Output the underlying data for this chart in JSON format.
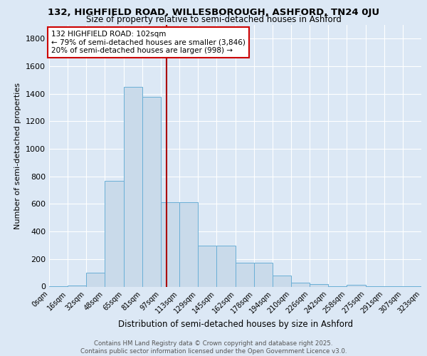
{
  "title1": "132, HIGHFIELD ROAD, WILLESBOROUGH, ASHFORD, TN24 0JU",
  "title2": "Size of property relative to semi-detached houses in Ashford",
  "xlabel": "Distribution of semi-detached houses by size in Ashford",
  "ylabel": "Number of semi-detached properties",
  "bin_edges": [
    0,
    16,
    32,
    48,
    65,
    81,
    97,
    113,
    129,
    145,
    162,
    178,
    194,
    210,
    226,
    242,
    258,
    275,
    291,
    307,
    323
  ],
  "bin_counts": [
    5,
    8,
    100,
    770,
    1450,
    1380,
    615,
    615,
    295,
    295,
    175,
    175,
    80,
    30,
    18,
    5,
    12,
    5,
    5,
    5
  ],
  "bar_facecolor": "#c9daea",
  "bar_edgecolor": "#6aafd6",
  "property_value": 102,
  "vline_color": "#aa0000",
  "annotation_text": "132 HIGHFIELD ROAD: 102sqm\n← 79% of semi-detached houses are smaller (3,846)\n20% of semi-detached houses are larger (998) →",
  "annotation_box_edgecolor": "#cc0000",
  "annotation_box_facecolor": "#ffffff",
  "ylim": [
    0,
    1900
  ],
  "yticks": [
    0,
    200,
    400,
    600,
    800,
    1000,
    1200,
    1400,
    1600,
    1800
  ],
  "bg_color": "#dce8f5",
  "grid_color": "#ffffff",
  "fig_bg_color": "#dce8f5",
  "footer_text": "Contains HM Land Registry data © Crown copyright and database right 2025.\nContains public sector information licensed under the Open Government Licence v3.0.",
  "tick_labels": [
    "0sqm",
    "16sqm",
    "32sqm",
    "48sqm",
    "65sqm",
    "81sqm",
    "97sqm",
    "113sqm",
    "129sqm",
    "145sqm",
    "162sqm",
    "178sqm",
    "194sqm",
    "210sqm",
    "226sqm",
    "242sqm",
    "258sqm",
    "275sqm",
    "291sqm",
    "307sqm",
    "323sqm"
  ]
}
